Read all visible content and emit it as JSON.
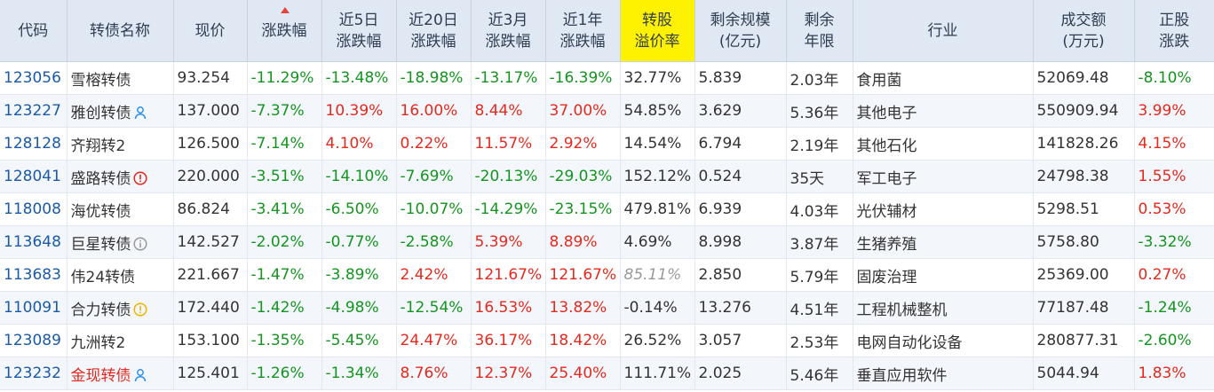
{
  "columns": [
    {
      "line1": "代码",
      "line2": ""
    },
    {
      "line1": "转债名称",
      "line2": ""
    },
    {
      "line1": "现价",
      "line2": ""
    },
    {
      "line1": "涨跌幅",
      "line2": ""
    },
    {
      "line1": "近5日",
      "line2": "涨跌幅"
    },
    {
      "line1": "近20日",
      "line2": "涨跌幅"
    },
    {
      "line1": "近3月",
      "line2": "涨跌幅"
    },
    {
      "line1": "近1年",
      "line2": "涨跌幅"
    },
    {
      "line1": "转股",
      "line2": "溢价率"
    },
    {
      "line1": "剩余规模",
      "line2": "(亿元)"
    },
    {
      "line1": "剩余",
      "line2": "年限"
    },
    {
      "line1": "行业",
      "line2": ""
    },
    {
      "line1": "成交额",
      "line2": "(万元)"
    },
    {
      "line1": "正股",
      "line2": "涨跌"
    }
  ],
  "sort": {
    "column": "涨跌幅",
    "direction": "desc",
    "indicator_color": "#e8443a"
  },
  "colors": {
    "up": "#e4291e",
    "down": "#13951f",
    "code": "#1a5aa8",
    "header_bg": "#dfe8f3",
    "highlight_header_bg": "#fff200",
    "badge_blue": "#2e8fe8",
    "badge_red": "#e4291e",
    "badge_yellow": "#f0b400",
    "badge_gray": "#9a9a9a"
  },
  "rows": [
    {
      "code": "123056",
      "name": "雪榕转债",
      "badge": "",
      "price": "93.254",
      "chg": "-11.29%",
      "chg5d": "-13.48%",
      "chg20d": "-18.98%",
      "chg3m": "-13.17%",
      "chg1y": "-16.39%",
      "premium": "32.77%",
      "scale": "5.839",
      "years": "2.03年",
      "industry": "食用菌",
      "turnover": "52069.48",
      "stock_chg": "-8.10%"
    },
    {
      "code": "123227",
      "name": "雅创转债",
      "badge": "person-icon",
      "price": "137.000",
      "chg": "-7.37%",
      "chg5d": "10.39%",
      "chg20d": "16.00%",
      "chg3m": "8.44%",
      "chg1y": "37.00%",
      "premium": "54.85%",
      "scale": "3.629",
      "years": "5.36年",
      "industry": "其他电子",
      "turnover": "550909.94",
      "stock_chg": "3.99%"
    },
    {
      "code": "128128",
      "name": "齐翔转2",
      "badge": "",
      "price": "126.500",
      "chg": "-7.14%",
      "chg5d": "4.10%",
      "chg20d": "0.22%",
      "chg3m": "11.57%",
      "chg1y": "2.92%",
      "premium": "14.54%",
      "scale": "6.794",
      "years": "2.19年",
      "industry": "其他石化",
      "turnover": "141828.26",
      "stock_chg": "4.15%"
    },
    {
      "code": "128041",
      "name": "盛路转债",
      "badge": "alert-red-icon",
      "price": "220.000",
      "chg": "-3.51%",
      "chg5d": "-14.10%",
      "chg20d": "-7.69%",
      "chg3m": "-20.13%",
      "chg1y": "-29.03%",
      "premium": "152.12%",
      "scale": "0.524",
      "years": "35天",
      "industry": "军工电子",
      "turnover": "24798.38",
      "stock_chg": "1.55%"
    },
    {
      "code": "118008",
      "name": "海优转债",
      "badge": "",
      "price": "86.824",
      "chg": "-3.41%",
      "chg5d": "-6.50%",
      "chg20d": "-10.07%",
      "chg3m": "-14.29%",
      "chg1y": "-23.15%",
      "premium": "479.81%",
      "scale": "6.939",
      "years": "4.03年",
      "industry": "光伏辅材",
      "turnover": "5298.51",
      "stock_chg": "0.53%"
    },
    {
      "code": "113648",
      "name": "巨星转债",
      "badge": "info-gray-icon",
      "price": "142.527",
      "chg": "-2.02%",
      "chg5d": "-0.77%",
      "chg20d": "-2.58%",
      "chg3m": "5.39%",
      "chg1y": "8.89%",
      "premium": "4.69%",
      "scale": "8.998",
      "years": "3.87年",
      "industry": "生猪养殖",
      "turnover": "5758.80",
      "stock_chg": "-3.32%"
    },
    {
      "code": "113683",
      "name": "伟24转债",
      "badge": "",
      "price": "221.667",
      "chg": "-1.47%",
      "chg5d": "-3.89%",
      "chg20d": "2.42%",
      "chg3m": "121.67%",
      "chg1y": "121.67%",
      "premium": "85.11%",
      "scale": "2.850",
      "years": "5.79年",
      "industry": "固废治理",
      "turnover": "25369.00",
      "stock_chg": "0.27%"
    },
    {
      "code": "110091",
      "name": "合力转债",
      "badge": "info-yellow-icon",
      "price": "172.440",
      "chg": "-1.42%",
      "chg5d": "-4.98%",
      "chg20d": "-12.54%",
      "chg3m": "16.53%",
      "chg1y": "13.82%",
      "premium": "-0.14%",
      "scale": "13.276",
      "years": "4.51年",
      "industry": "工程机械整机",
      "turnover": "77187.48",
      "stock_chg": "-1.24%"
    },
    {
      "code": "123089",
      "name": "九洲转2",
      "badge": "",
      "price": "153.100",
      "chg": "-1.35%",
      "chg5d": "-5.45%",
      "chg20d": "24.47%",
      "chg3m": "36.17%",
      "chg1y": "18.42%",
      "premium": "26.52%",
      "scale": "3.057",
      "years": "2.53年",
      "industry": "电网自动化设备",
      "turnover": "280877.31",
      "stock_chg": "-2.60%"
    },
    {
      "code": "123232",
      "name": "金现转债",
      "badge": "person-icon",
      "price": "125.401",
      "chg": "-1.26%",
      "chg5d": "-1.34%",
      "chg20d": "8.76%",
      "chg3m": "12.37%",
      "chg1y": "25.40%",
      "premium": "111.71%",
      "scale": "2.025",
      "years": "5.46年",
      "industry": "垂直应用软件",
      "turnover": "5044.94",
      "stock_chg": "1.83%",
      "name_red": true
    }
  ]
}
